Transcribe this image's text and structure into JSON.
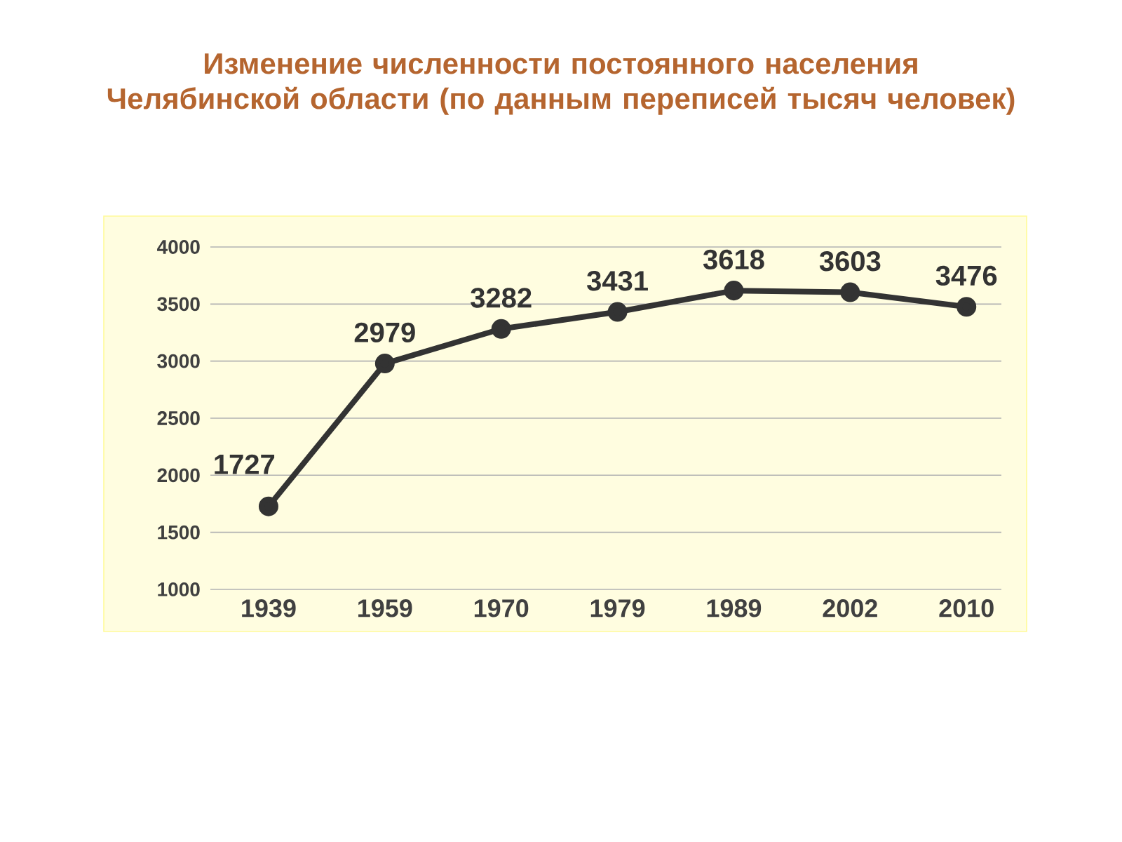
{
  "chart_data": {
    "type": "line",
    "title": "Изменение численности постоянного населения Челябинской области (по данным переписей тысяч человек)",
    "categories": [
      "1939",
      "1959",
      "1970",
      "1979",
      "1989",
      "2002",
      "2010"
    ],
    "values": [
      1727,
      2979,
      3282,
      3431,
      3618,
      3603,
      3476
    ],
    "color": "#333333",
    "ylim": [
      1000,
      4000
    ],
    "yticks": [
      1000,
      1500,
      2000,
      2500,
      3000,
      3500,
      4000
    ],
    "grid": "y",
    "marker": "circle",
    "line_style": "solid",
    "data_labels": true
  }
}
